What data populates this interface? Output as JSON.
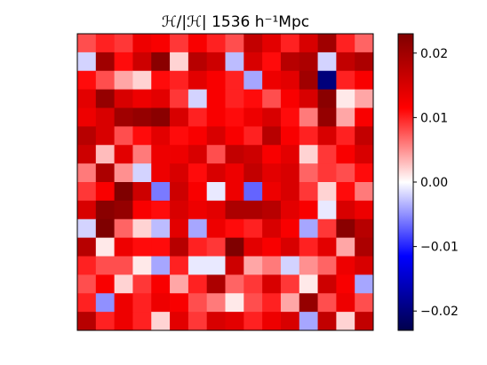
{
  "chart_data": {
    "type": "heatmap",
    "title": "ℋ/|ℋ| 1536 h⁻¹Mpc",
    "xlabel": "",
    "ylabel": "",
    "colormap": "seismic",
    "colorbar": {
      "range": [
        -0.023,
        0.023
      ],
      "ticks": [
        -0.02,
        -0.01,
        0.0,
        0.01,
        0.02
      ],
      "tick_labels": [
        "−0.02",
        "−0.01",
        "0.00",
        "0.01",
        "0.02"
      ]
    },
    "grid": false,
    "rows": 16,
    "cols": 16,
    "values": [
      [
        0.008,
        0.01,
        0.009,
        0.013,
        0.012,
        0.009,
        0.012,
        0.01,
        0.008,
        0.017,
        0.014,
        0.01,
        0.015,
        0.02,
        0.01,
        0.007
      ],
      [
        -0.002,
        0.02,
        0.011,
        0.016,
        0.022,
        0.002,
        0.018,
        0.016,
        -0.003,
        0.015,
        0.011,
        0.018,
        0.019,
        -0.002,
        0.017,
        0.019
      ],
      [
        0.011,
        0.008,
        0.004,
        0.002,
        0.011,
        0.01,
        0.014,
        0.012,
        0.01,
        -0.004,
        0.013,
        0.014,
        0.02,
        -0.02,
        0.01,
        0.012
      ],
      [
        0.014,
        0.021,
        0.015,
        0.013,
        0.014,
        0.009,
        -0.002,
        0.012,
        0.01,
        0.011,
        0.008,
        0.012,
        0.015,
        0.022,
        0.001,
        0.004
      ],
      [
        0.013,
        0.015,
        0.02,
        0.021,
        0.022,
        0.015,
        0.01,
        0.012,
        0.011,
        0.013,
        0.015,
        0.011,
        0.006,
        0.021,
        0.004,
        0.012
      ],
      [
        0.018,
        0.015,
        0.008,
        0.011,
        0.014,
        0.011,
        0.012,
        0.015,
        0.012,
        0.01,
        0.018,
        0.012,
        0.01,
        0.015,
        0.01,
        0.017
      ],
      [
        0.016,
        0.003,
        0.014,
        0.006,
        0.013,
        0.013,
        0.015,
        0.008,
        0.017,
        0.016,
        0.012,
        0.014,
        0.002,
        0.009,
        0.012,
        0.015
      ],
      [
        0.006,
        0.019,
        0.005,
        -0.002,
        0.013,
        0.015,
        0.011,
        0.015,
        0.013,
        0.017,
        0.014,
        0.015,
        0.007,
        0.009,
        0.008,
        0.011
      ],
      [
        0.009,
        0.012,
        0.026,
        0.016,
        -0.006,
        0.016,
        0.012,
        -0.001,
        0.013,
        -0.007,
        0.013,
        0.015,
        0.009,
        0.002,
        0.011,
        0.006
      ],
      [
        0.015,
        0.022,
        0.021,
        0.012,
        0.011,
        0.015,
        0.013,
        0.014,
        0.019,
        0.019,
        0.018,
        0.014,
        0.012,
        -0.001,
        0.015,
        0.013
      ],
      [
        -0.002,
        0.024,
        0.007,
        0.002,
        -0.003,
        0.014,
        -0.004,
        0.013,
        0.011,
        0.01,
        0.015,
        0.012,
        -0.004,
        0.009,
        0.022,
        0.018
      ],
      [
        0.018,
        0.001,
        0.013,
        0.011,
        0.011,
        0.018,
        0.01,
        0.009,
        0.023,
        0.014,
        0.012,
        0.015,
        0.01,
        0.014,
        0.004,
        0.019
      ],
      [
        0.01,
        0.008,
        0.008,
        0.001,
        -0.004,
        0.01,
        -0.001,
        -0.001,
        0.016,
        0.004,
        0.006,
        -0.002,
        0.005,
        0.007,
        0.013,
        0.015
      ],
      [
        0.008,
        0.012,
        0.002,
        0.009,
        0.012,
        0.004,
        0.01,
        0.019,
        0.007,
        0.009,
        0.015,
        0.009,
        0.001,
        0.016,
        0.012,
        -0.004
      ],
      [
        0.01,
        -0.005,
        0.013,
        0.01,
        0.013,
        0.012,
        0.008,
        0.006,
        0.001,
        0.008,
        0.01,
        0.004,
        0.021,
        0.008,
        0.013,
        0.008
      ],
      [
        0.018,
        0.01,
        0.013,
        0.01,
        0.002,
        0.014,
        0.009,
        0.015,
        0.014,
        0.01,
        0.013,
        0.015,
        -0.004,
        0.017,
        0.002,
        0.017
      ]
    ]
  }
}
